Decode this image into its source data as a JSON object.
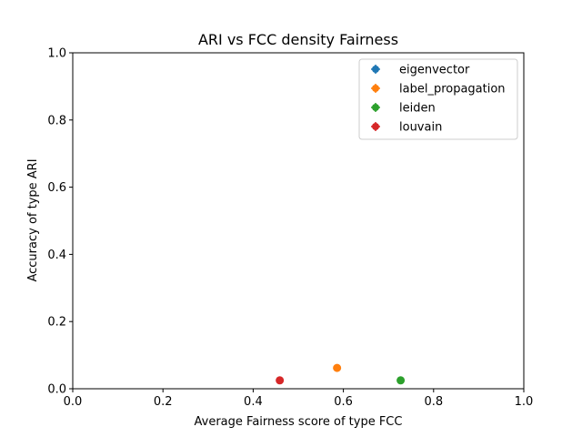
{
  "chart_data": {
    "type": "scatter",
    "title": "ARI vs FCC density Fairness",
    "xlabel": "Average Fairness score of type FCC",
    "ylabel": "Accuracy of type ARI",
    "xlim": [
      0,
      1
    ],
    "ylim": [
      0,
      1
    ],
    "xticks": [
      "0.0",
      "0.2",
      "0.4",
      "0.6",
      "0.8",
      "1.0"
    ],
    "yticks": [
      "0.0",
      "0.2",
      "0.4",
      "0.6",
      "0.8",
      "1.0"
    ],
    "grid": false,
    "legend_position": "top-right",
    "series": [
      {
        "name": "eigenvector",
        "color": "#1f77b4",
        "points": []
      },
      {
        "name": "label_propagation",
        "color": "#ff7f0e",
        "points": [
          {
            "x": 0.586,
            "y": 0.062
          }
        ]
      },
      {
        "name": "leiden",
        "color": "#2ca02c",
        "points": [
          {
            "x": 0.727,
            "y": 0.025
          }
        ]
      },
      {
        "name": "louvain",
        "color": "#d62728",
        "points": [
          {
            "x": 0.459,
            "y": 0.025
          }
        ]
      }
    ]
  }
}
